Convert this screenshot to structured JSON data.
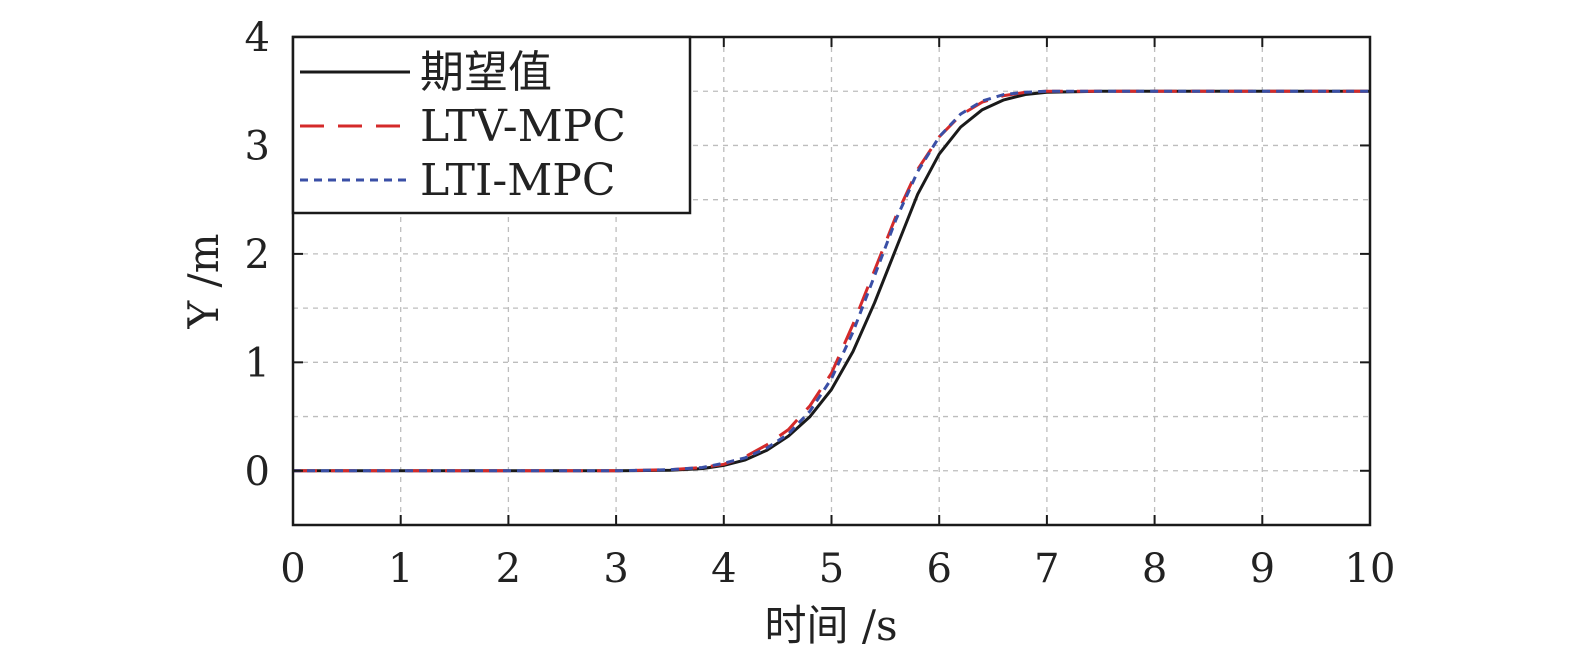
{
  "chart_data": {
    "type": "line",
    "title": "",
    "xlabel": "时间 /s",
    "ylabel": "Y /m",
    "xlim": [
      0,
      10
    ],
    "ylim": [
      -0.5,
      4
    ],
    "xticks": [
      0,
      1,
      2,
      3,
      4,
      5,
      6,
      7,
      8,
      9,
      10
    ],
    "yticks": [
      0,
      1,
      2,
      3,
      4
    ],
    "xtick_labels": [
      "0",
      "1",
      "2",
      "3",
      "4",
      "5",
      "6",
      "7",
      "8",
      "9",
      "10"
    ],
    "ytick_labels": [
      "0",
      "1",
      "2",
      "3",
      "4"
    ],
    "grid": true,
    "legend_position": "top-left",
    "series": [
      {
        "name": "期望值",
        "color": "#1a1a1a",
        "style": "solid",
        "x": [
          0,
          1,
          2,
          3,
          3.5,
          3.8,
          4.0,
          4.2,
          4.4,
          4.6,
          4.8,
          5.0,
          5.2,
          5.4,
          5.6,
          5.8,
          6.0,
          6.2,
          6.4,
          6.6,
          6.8,
          7.0,
          7.5,
          8,
          9,
          10
        ],
        "y": [
          0,
          0,
          0,
          0,
          0.005,
          0.02,
          0.05,
          0.1,
          0.19,
          0.32,
          0.5,
          0.75,
          1.1,
          1.55,
          2.05,
          2.55,
          2.92,
          3.17,
          3.33,
          3.42,
          3.47,
          3.49,
          3.5,
          3.5,
          3.5,
          3.5
        ]
      },
      {
        "name": "LTV-MPC",
        "color": "#d42a2a",
        "style": "dashed",
        "x": [
          0,
          1,
          2,
          3,
          3.5,
          3.8,
          4.0,
          4.2,
          4.4,
          4.6,
          4.8,
          5.0,
          5.2,
          5.4,
          5.6,
          5.8,
          6.0,
          6.2,
          6.4,
          6.6,
          6.8,
          7.0,
          7.5,
          8,
          9,
          10
        ],
        "y": [
          0,
          0,
          0,
          0,
          0.01,
          0.03,
          0.06,
          0.13,
          0.24,
          0.38,
          0.6,
          0.9,
          1.35,
          1.85,
          2.35,
          2.78,
          3.08,
          3.28,
          3.4,
          3.46,
          3.49,
          3.5,
          3.5,
          3.5,
          3.5,
          3.5
        ]
      },
      {
        "name": "LTI-MPC",
        "color": "#3a4fa6",
        "style": "dotted",
        "x": [
          0,
          1,
          2,
          3,
          3.5,
          3.8,
          4.0,
          4.2,
          4.4,
          4.6,
          4.8,
          5.0,
          5.2,
          5.4,
          5.6,
          5.8,
          6.0,
          6.2,
          6.4,
          6.6,
          6.8,
          7.0,
          7.5,
          8,
          9,
          10
        ],
        "y": [
          0,
          0,
          0,
          0,
          0.01,
          0.03,
          0.07,
          0.12,
          0.21,
          0.34,
          0.55,
          0.85,
          1.28,
          1.8,
          2.32,
          2.76,
          3.08,
          3.29,
          3.41,
          3.47,
          3.49,
          3.5,
          3.5,
          3.5,
          3.5,
          3.5
        ]
      }
    ]
  }
}
